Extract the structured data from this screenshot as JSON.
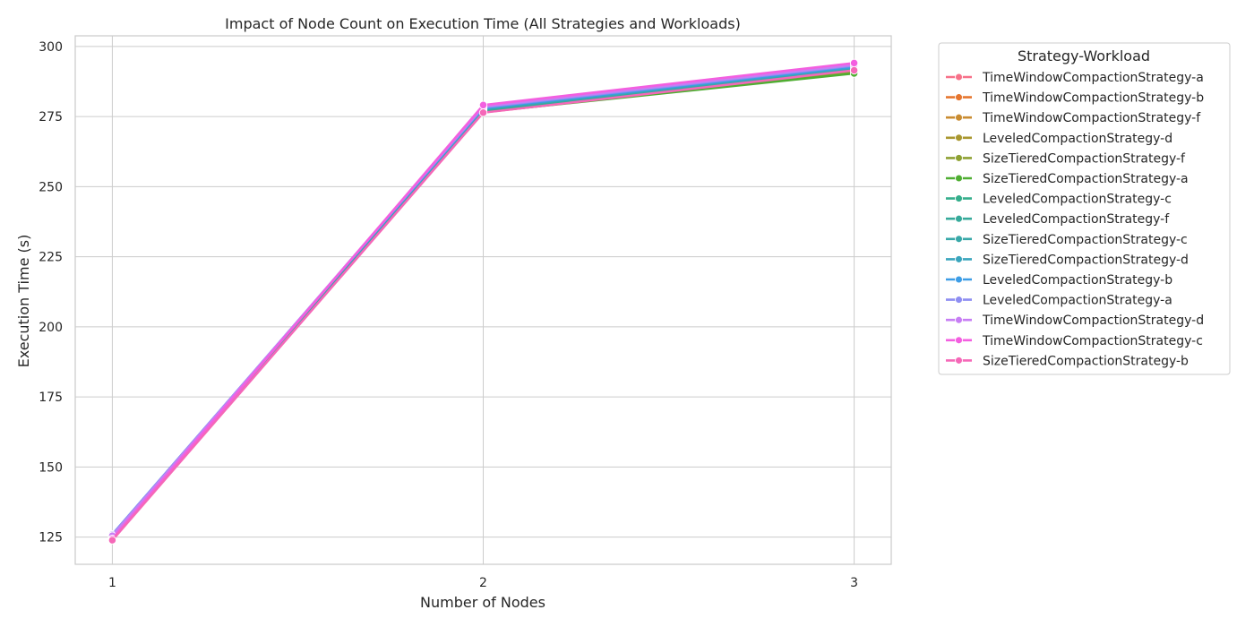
{
  "chart_data": {
    "type": "line",
    "title": "Impact of Node Count on Execution Time (All Strategies and Workloads)",
    "xlabel": "Number of Nodes",
    "ylabel": "Execution Time (s)",
    "x": [
      1,
      2,
      3
    ],
    "x_ticks": [
      "1",
      "2",
      "3"
    ],
    "xlim": [
      0.9,
      3.1
    ],
    "ylim": [
      115.3,
      303.8
    ],
    "y_ticks": [
      125,
      150,
      175,
      200,
      225,
      250,
      275,
      300
    ],
    "grid": true,
    "legend_title": "Strategy-Workload",
    "legend_position": "outside-top-right",
    "series": [
      {
        "name": "TimeWindowCompactionStrategy-a",
        "color": "#f77189",
        "values": [
          124.6,
          276.8,
          291.8
        ]
      },
      {
        "name": "TimeWindowCompactionStrategy-b",
        "color": "#e6762f",
        "values": [
          125.2,
          276.5,
          291.2
        ]
      },
      {
        "name": "TimeWindowCompactionStrategy-f",
        "color": "#c98c32",
        "values": [
          124.9,
          276.7,
          291.5
        ]
      },
      {
        "name": "LeveledCompactionStrategy-d",
        "color": "#a9972f",
        "values": [
          125.4,
          277.0,
          291.0
        ]
      },
      {
        "name": "SizeTieredCompactionStrategy-f",
        "color": "#8ea132",
        "values": [
          125.0,
          276.9,
          291.3
        ]
      },
      {
        "name": "SizeTieredCompactionStrategy-a",
        "color": "#4fae32",
        "values": [
          125.3,
          276.6,
          290.4
        ]
      },
      {
        "name": "LeveledCompactionStrategy-c",
        "color": "#34ae8b",
        "values": [
          125.6,
          277.2,
          291.9
        ]
      },
      {
        "name": "LeveledCompactionStrategy-f",
        "color": "#36aa9a",
        "values": [
          125.1,
          277.4,
          291.6
        ]
      },
      {
        "name": "SizeTieredCompactionStrategy-c",
        "color": "#38a8a8",
        "values": [
          125.7,
          277.6,
          292.2
        ]
      },
      {
        "name": "SizeTieredCompactionStrategy-d",
        "color": "#3aa5bd",
        "values": [
          125.8,
          277.8,
          292.5
        ]
      },
      {
        "name": "LeveledCompactionStrategy-b",
        "color": "#3d9de6",
        "values": [
          126.0,
          278.0,
          292.8
        ]
      },
      {
        "name": "LeveledCompactionStrategy-a",
        "color": "#8e8ef2",
        "values": [
          125.9,
          278.3,
          293.2
        ]
      },
      {
        "name": "TimeWindowCompactionStrategy-d",
        "color": "#c77ef4",
        "values": [
          125.5,
          278.6,
          293.5
        ]
      },
      {
        "name": "TimeWindowCompactionStrategy-c",
        "color": "#f35fe0",
        "values": [
          124.4,
          279.1,
          294.1
        ]
      },
      {
        "name": "SizeTieredCompactionStrategy-b",
        "color": "#f568b8",
        "values": [
          123.9,
          276.4,
          291.5
        ]
      }
    ]
  }
}
